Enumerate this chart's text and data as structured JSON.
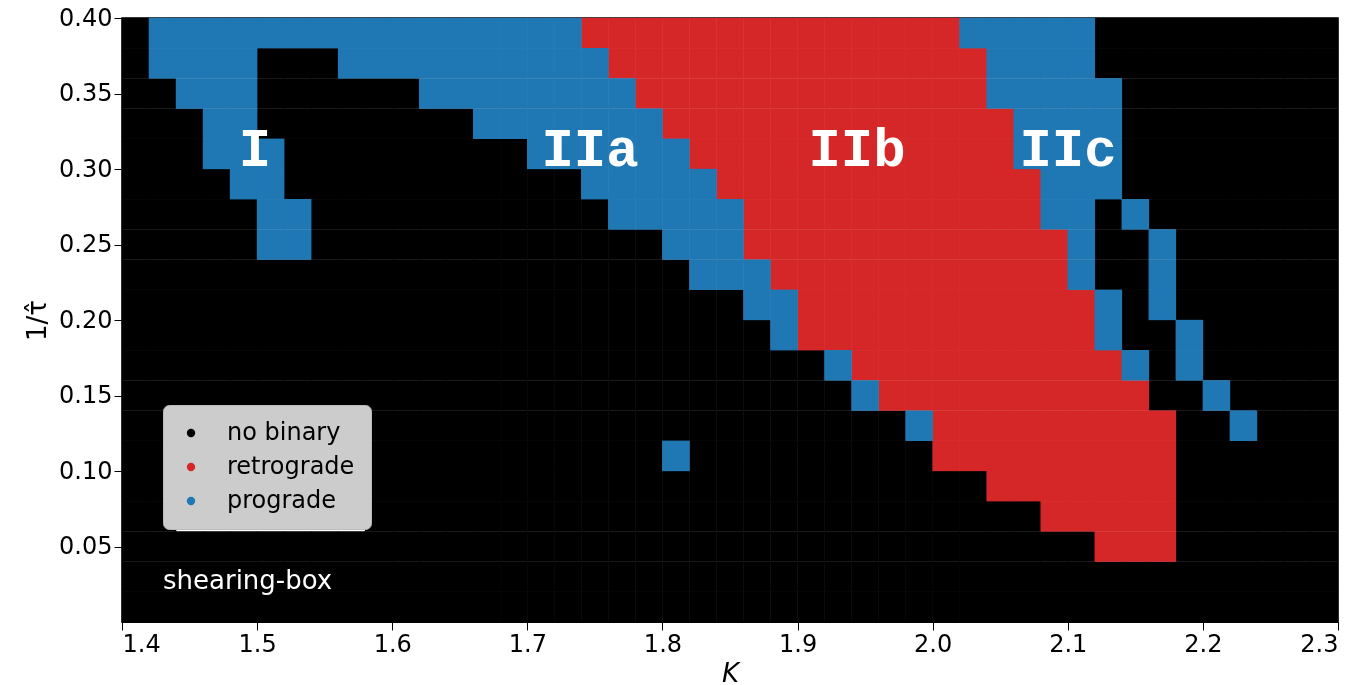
{
  "chart_data": {
    "type": "scatter",
    "marker": "square",
    "legend": "bottom left",
    "grid": false,
    "xlabel": "K",
    "ylabel": "1/τ̂",
    "xlim": [
      1.4,
      2.3
    ],
    "ylim": [
      0.0,
      0.4
    ],
    "xticks": [
      1.4,
      1.5,
      1.6,
      1.7,
      1.8,
      1.9,
      {
        "value": 2.0,
        "label": "2.0"
      },
      2.1,
      2.2,
      2.3
    ],
    "yticks": [
      0.05,
      {
        "value": 0.1,
        "label": "0.10"
      },
      0.15,
      {
        "value": 0.2,
        "label": "0.20"
      },
      0.25,
      {
        "value": 0.3,
        "label": "0.30"
      },
      0.35,
      {
        "value": 0.4,
        "label": "0.40"
      }
    ],
    "annotations": [
      "I",
      "IIa",
      "IIb",
      "IIc",
      "shearing-box"
    ],
    "series": [
      {
        "name": "no binary",
        "color": "#000000",
        "x": [
          1.41,
          2.13,
          2.15,
          2.17,
          2.19,
          2.21,
          2.23,
          2.25,
          2.27,
          2.29,
          1.41,
          1.51,
          1.53,
          1.55,
          2.13,
          2.15,
          2.17,
          2.19,
          2.21,
          2.23,
          2.25,
          2.27,
          2.29,
          1.41,
          1.43,
          1.51,
          1.53,
          1.55,
          1.57,
          1.59,
          1.61,
          2.15,
          2.17,
          2.19,
          2.21,
          2.23,
          2.25,
          2.27,
          2.29,
          1.41,
          1.43,
          1.45,
          1.51,
          1.53,
          1.55,
          1.57,
          1.59,
          1.61,
          1.63,
          1.65,
          2.15,
          2.17,
          2.19,
          2.21,
          2.23,
          2.25,
          2.27,
          2.29,
          1.41,
          1.43,
          1.45,
          1.53,
          1.55,
          1.57,
          1.59,
          1.61,
          1.63,
          1.65,
          1.67,
          1.69,
          2.15,
          2.17,
          2.19,
          2.21,
          2.23,
          2.25,
          2.27,
          2.29,
          1.41,
          1.43,
          1.45,
          1.47,
          1.53,
          1.55,
          1.57,
          1.59,
          1.61,
          1.63,
          1.65,
          1.67,
          1.69,
          1.71,
          1.73,
          2.15,
          2.17,
          2.19,
          2.21,
          2.23,
          2.25,
          2.27,
          2.29,
          1.41,
          1.43,
          1.45,
          1.47,
          1.49,
          1.55,
          1.57,
          1.59,
          1.61,
          1.63,
          1.65,
          1.67,
          1.69,
          1.71,
          1.73,
          1.75,
          2.13,
          2.17,
          2.19,
          2.21,
          2.23,
          2.25,
          2.27,
          2.29,
          1.41,
          1.43,
          1.45,
          1.47,
          1.49,
          1.55,
          1.57,
          1.59,
          1.61,
          1.63,
          1.65,
          1.67,
          1.69,
          1.71,
          1.73,
          1.75,
          1.77,
          1.79,
          2.13,
          2.15,
          2.19,
          2.21,
          2.23,
          2.25,
          2.27,
          2.29,
          1.41,
          1.43,
          1.45,
          1.47,
          1.49,
          1.51,
          1.53,
          1.55,
          1.57,
          1.59,
          1.61,
          1.63,
          1.65,
          1.67,
          1.69,
          1.71,
          1.73,
          1.75,
          1.77,
          1.79,
          1.81,
          2.13,
          2.15,
          2.19,
          2.21,
          2.23,
          2.25,
          2.27,
          2.29,
          1.41,
          1.43,
          1.45,
          1.47,
          1.49,
          1.51,
          1.53,
          1.55,
          1.57,
          1.59,
          1.61,
          1.63,
          1.65,
          1.67,
          1.69,
          1.71,
          1.73,
          1.75,
          1.77,
          1.79,
          1.81,
          1.83,
          1.85,
          2.15,
          2.19,
          2.21,
          2.23,
          2.25,
          2.27,
          2.29,
          1.41,
          1.43,
          1.45,
          1.47,
          1.49,
          1.51,
          1.53,
          1.55,
          1.57,
          1.59,
          1.61,
          1.63,
          1.65,
          1.67,
          1.69,
          1.71,
          1.73,
          1.75,
          1.77,
          1.79,
          1.81,
          1.83,
          1.85,
          1.87,
          2.15,
          2.17,
          2.21,
          2.23,
          2.25,
          2.27,
          2.29,
          1.41,
          1.43,
          1.45,
          1.47,
          1.49,
          1.51,
          1.53,
          1.55,
          1.57,
          1.59,
          1.61,
          1.63,
          1.65,
          1.67,
          1.69,
          1.71,
          1.73,
          1.75,
          1.77,
          1.79,
          1.81,
          1.83,
          1.85,
          1.87,
          1.89,
          1.91,
          2.17,
          2.21,
          2.23,
          2.25,
          2.27,
          2.29,
          1.41,
          1.43,
          1.45,
          1.47,
          1.49,
          1.51,
          1.53,
          1.55,
          1.57,
          1.59,
          1.61,
          1.63,
          1.65,
          1.67,
          1.69,
          1.71,
          1.73,
          1.75,
          1.77,
          1.79,
          1.81,
          1.83,
          1.85,
          1.87,
          1.89,
          1.91,
          1.93,
          2.17,
          2.19,
          2.23,
          2.25,
          2.27,
          2.29,
          1.41,
          1.43,
          1.59,
          1.61,
          1.63,
          1.65,
          1.67,
          1.69,
          1.71,
          1.73,
          1.75,
          1.77,
          1.79,
          1.81,
          1.83,
          1.85,
          1.87,
          1.89,
          1.91,
          1.93,
          1.95,
          1.97,
          2.19,
          2.21,
          2.25,
          2.27,
          2.29,
          1.41,
          1.43,
          1.59,
          1.61,
          1.63,
          1.65,
          1.67,
          1.69,
          1.71,
          1.73,
          1.75,
          1.77,
          1.79,
          1.83,
          1.85,
          1.87,
          1.89,
          1.91,
          1.93,
          1.95,
          1.97,
          1.99,
          2.19,
          2.21,
          2.23,
          2.25,
          2.27,
          2.29,
          1.41,
          1.43,
          1.59,
          1.61,
          1.63,
          1.65,
          1.67,
          1.69,
          1.71,
          1.73,
          1.75,
          1.77,
          1.79,
          1.81,
          1.83,
          1.85,
          1.87,
          1.89,
          1.91,
          1.93,
          1.95,
          1.97,
          1.99,
          2.01,
          2.03,
          2.19,
          2.21,
          2.23,
          2.25,
          2.27,
          2.29,
          1.41,
          1.43,
          1.59,
          1.61,
          1.63,
          1.65,
          1.67,
          1.69,
          1.71,
          1.73,
          1.75,
          1.77,
          1.79,
          1.81,
          1.83,
          1.85,
          1.87,
          1.89,
          1.91,
          1.93,
          1.95,
          1.97,
          1.99,
          2.01,
          2.03,
          2.05,
          2.07,
          2.19,
          2.21,
          2.23,
          2.25,
          2.27,
          2.29,
          1.41,
          1.43,
          1.45,
          1.47,
          1.49,
          1.51,
          1.53,
          1.55,
          1.57,
          1.59,
          1.61,
          1.63,
          1.65,
          1.67,
          1.69,
          1.71,
          1.73,
          1.75,
          1.77,
          1.79,
          1.81,
          1.83,
          1.85,
          1.87,
          1.89,
          1.91,
          1.93,
          1.95,
          1.97,
          1.99,
          2.01,
          2.03,
          2.05,
          2.07,
          2.09,
          2.11,
          2.19,
          2.21,
          2.23,
          2.25,
          2.27,
          2.29,
          1.41,
          1.43,
          1.45,
          1.47,
          1.49,
          1.51,
          1.53,
          1.55,
          1.57,
          1.59,
          1.61,
          1.63,
          1.65,
          1.67,
          1.69,
          1.71,
          1.73,
          1.75,
          1.77,
          1.79,
          1.81,
          1.83,
          1.85,
          1.87,
          1.89,
          1.91,
          1.93,
          1.95,
          1.97,
          1.99,
          2.01,
          2.03,
          2.05,
          2.07,
          2.09,
          2.11,
          2.13,
          2.15,
          2.17,
          2.19,
          2.21,
          2.23,
          2.25,
          2.27,
          2.29,
          1.41,
          1.43,
          1.45,
          1.47,
          1.49,
          1.51,
          1.53,
          1.55,
          1.57,
          1.59,
          1.61,
          1.63,
          1.65,
          1.67,
          1.69,
          1.71,
          1.73,
          1.75,
          1.77,
          1.79,
          1.81,
          1.83,
          1.85,
          1.87,
          1.89,
          1.91,
          1.93,
          1.95,
          1.97,
          1.99,
          2.01,
          2.03,
          2.05,
          2.07,
          2.09,
          2.11,
          2.13,
          2.15,
          2.17,
          2.19,
          2.21,
          2.23,
          2.25,
          2.27,
          2.29
        ],
        "values": [
          0.39,
          0.39,
          0.39,
          0.39,
          0.39,
          0.39,
          0.39,
          0.39,
          0.39,
          0.39,
          0.37,
          0.37,
          0.37,
          0.37,
          0.37,
          0.37,
          0.37,
          0.37,
          0.37,
          0.37,
          0.37,
          0.37,
          0.37,
          0.35,
          0.35,
          0.35,
          0.35,
          0.35,
          0.35,
          0.35,
          0.35,
          0.35,
          0.35,
          0.35,
          0.35,
          0.35,
          0.35,
          0.35,
          0.35,
          0.33,
          0.33,
          0.33,
          0.33,
          0.33,
          0.33,
          0.33,
          0.33,
          0.33,
          0.33,
          0.33,
          0.33,
          0.33,
          0.33,
          0.33,
          0.33,
          0.33,
          0.33,
          0.33,
          0.31,
          0.31,
          0.31,
          0.31,
          0.31,
          0.31,
          0.31,
          0.31,
          0.31,
          0.31,
          0.31,
          0.31,
          0.31,
          0.31,
          0.31,
          0.31,
          0.31,
          0.31,
          0.31,
          0.31,
          0.29,
          0.29,
          0.29,
          0.29,
          0.29,
          0.29,
          0.29,
          0.29,
          0.29,
          0.29,
          0.29,
          0.29,
          0.29,
          0.29,
          0.29,
          0.29,
          0.29,
          0.29,
          0.29,
          0.29,
          0.29,
          0.29,
          0.29,
          0.27,
          0.27,
          0.27,
          0.27,
          0.27,
          0.27,
          0.27,
          0.27,
          0.27,
          0.27,
          0.27,
          0.27,
          0.27,
          0.27,
          0.27,
          0.27,
          0.27,
          0.27,
          0.27,
          0.27,
          0.27,
          0.27,
          0.27,
          0.27,
          0.25,
          0.25,
          0.25,
          0.25,
          0.25,
          0.25,
          0.25,
          0.25,
          0.25,
          0.25,
          0.25,
          0.25,
          0.25,
          0.25,
          0.25,
          0.25,
          0.25,
          0.25,
          0.25,
          0.25,
          0.25,
          0.25,
          0.25,
          0.25,
          0.25,
          0.25,
          0.23,
          0.23,
          0.23,
          0.23,
          0.23,
          0.23,
          0.23,
          0.23,
          0.23,
          0.23,
          0.23,
          0.23,
          0.23,
          0.23,
          0.23,
          0.23,
          0.23,
          0.23,
          0.23,
          0.23,
          0.23,
          0.23,
          0.23,
          0.23,
          0.23,
          0.23,
          0.23,
          0.23,
          0.23,
          0.21,
          0.21,
          0.21,
          0.21,
          0.21,
          0.21,
          0.21,
          0.21,
          0.21,
          0.21,
          0.21,
          0.21,
          0.21,
          0.21,
          0.21,
          0.21,
          0.21,
          0.21,
          0.21,
          0.21,
          0.21,
          0.21,
          0.21,
          0.21,
          0.21,
          0.21,
          0.21,
          0.21,
          0.21,
          0.21,
          0.19,
          0.19,
          0.19,
          0.19,
          0.19,
          0.19,
          0.19,
          0.19,
          0.19,
          0.19,
          0.19,
          0.19,
          0.19,
          0.19,
          0.19,
          0.19,
          0.19,
          0.19,
          0.19,
          0.19,
          0.19,
          0.19,
          0.19,
          0.19,
          0.19,
          0.19,
          0.19,
          0.19,
          0.19,
          0.19,
          0.19,
          0.17,
          0.17,
          0.17,
          0.17,
          0.17,
          0.17,
          0.17,
          0.17,
          0.17,
          0.17,
          0.17,
          0.17,
          0.17,
          0.17,
          0.17,
          0.17,
          0.17,
          0.17,
          0.17,
          0.17,
          0.17,
          0.17,
          0.17,
          0.17,
          0.17,
          0.17,
          0.17,
          0.17,
          0.17,
          0.17,
          0.17,
          0.17,
          0.15,
          0.15,
          0.15,
          0.15,
          0.15,
          0.15,
          0.15,
          0.15,
          0.15,
          0.15,
          0.15,
          0.15,
          0.15,
          0.15,
          0.15,
          0.15,
          0.15,
          0.15,
          0.15,
          0.15,
          0.15,
          0.15,
          0.15,
          0.15,
          0.15,
          0.15,
          0.15,
          0.15,
          0.15,
          0.15,
          0.15,
          0.15,
          0.15,
          0.13,
          0.13,
          0.13,
          0.13,
          0.13,
          0.13,
          0.13,
          0.13,
          0.13,
          0.13,
          0.13,
          0.13,
          0.13,
          0.13,
          0.13,
          0.13,
          0.13,
          0.13,
          0.13,
          0.13,
          0.13,
          0.13,
          0.13,
          0.13,
          0.13,
          0.13,
          0.13,
          0.11,
          0.11,
          0.11,
          0.11,
          0.11,
          0.11,
          0.11,
          0.11,
          0.11,
          0.11,
          0.11,
          0.11,
          0.11,
          0.11,
          0.11,
          0.11,
          0.11,
          0.11,
          0.11,
          0.11,
          0.11,
          0.11,
          0.11,
          0.11,
          0.11,
          0.11,
          0.11,
          0.11,
          0.09,
          0.09,
          0.09,
          0.09,
          0.09,
          0.09,
          0.09,
          0.09,
          0.09,
          0.09,
          0.09,
          0.09,
          0.09,
          0.09,
          0.09,
          0.09,
          0.09,
          0.09,
          0.09,
          0.09,
          0.09,
          0.09,
          0.09,
          0.09,
          0.09,
          0.09,
          0.09,
          0.09,
          0.09,
          0.09,
          0.09,
          0.07,
          0.07,
          0.07,
          0.07,
          0.07,
          0.07,
          0.07,
          0.07,
          0.07,
          0.07,
          0.07,
          0.07,
          0.07,
          0.07,
          0.07,
          0.07,
          0.07,
          0.07,
          0.07,
          0.07,
          0.07,
          0.07,
          0.07,
          0.07,
          0.07,
          0.07,
          0.07,
          0.07,
          0.07,
          0.07,
          0.07,
          0.07,
          0.07,
          0.05,
          0.05,
          0.05,
          0.05,
          0.05,
          0.05,
          0.05,
          0.05,
          0.05,
          0.05,
          0.05,
          0.05,
          0.05,
          0.05,
          0.05,
          0.05,
          0.05,
          0.05,
          0.05,
          0.05,
          0.05,
          0.05,
          0.05,
          0.05,
          0.05,
          0.05,
          0.05,
          0.05,
          0.05,
          0.05,
          0.05,
          0.05,
          0.05,
          0.05,
          0.05,
          0.05,
          0.05,
          0.05,
          0.05,
          0.05,
          0.05,
          0.05,
          0.03,
          0.03,
          0.03,
          0.03,
          0.03,
          0.03,
          0.03,
          0.03,
          0.03,
          0.03,
          0.03,
          0.03,
          0.03,
          0.03,
          0.03,
          0.03,
          0.03,
          0.03,
          0.03,
          0.03,
          0.03,
          0.03,
          0.03,
          0.03,
          0.03,
          0.03,
          0.03,
          0.03,
          0.03,
          0.03,
          0.03,
          0.03,
          0.03,
          0.03,
          0.03,
          0.03,
          0.03,
          0.03,
          0.03,
          0.03,
          0.03,
          0.03,
          0.03,
          0.03,
          0.03,
          0.01,
          0.01,
          0.01,
          0.01,
          0.01,
          0.01,
          0.01,
          0.01,
          0.01,
          0.01,
          0.01,
          0.01,
          0.01,
          0.01,
          0.01,
          0.01,
          0.01,
          0.01,
          0.01,
          0.01,
          0.01,
          0.01,
          0.01,
          0.01,
          0.01,
          0.01,
          0.01,
          0.01,
          0.01,
          0.01,
          0.01,
          0.01,
          0.01,
          0.01,
          0.01,
          0.01,
          0.01,
          0.01,
          0.01,
          0.01,
          0.01,
          0.01,
          0.01,
          0.01,
          0.01
        ]
      },
      {
        "name": "retrograde",
        "color": "#d62728",
        "x": [
          1.75,
          1.77,
          1.79,
          1.81,
          1.83,
          1.85,
          1.87,
          1.89,
          1.91,
          1.93,
          1.95,
          1.97,
          1.99,
          2.01,
          1.77,
          1.79,
          1.81,
          1.83,
          1.85,
          1.87,
          1.89,
          1.91,
          1.93,
          1.95,
          1.97,
          1.99,
          2.01,
          2.03,
          1.79,
          1.81,
          1.83,
          1.85,
          1.87,
          1.89,
          1.91,
          1.93,
          1.95,
          1.97,
          1.99,
          2.01,
          2.03,
          1.81,
          1.83,
          1.85,
          1.87,
          1.89,
          1.91,
          1.93,
          1.95,
          1.97,
          1.99,
          2.01,
          2.03,
          2.05,
          1.83,
          1.85,
          1.87,
          1.89,
          1.91,
          1.93,
          1.95,
          1.97,
          1.99,
          2.01,
          2.03,
          2.05,
          1.85,
          1.87,
          1.89,
          1.91,
          1.93,
          1.95,
          1.97,
          1.99,
          2.01,
          2.03,
          2.05,
          2.07,
          1.87,
          1.89,
          1.91,
          1.93,
          1.95,
          1.97,
          1.99,
          2.01,
          2.03,
          2.05,
          2.07,
          1.87,
          1.89,
          1.91,
          1.93,
          1.95,
          1.97,
          1.99,
          2.01,
          2.03,
          2.05,
          2.07,
          2.09,
          1.89,
          1.91,
          1.93,
          1.95,
          1.97,
          1.99,
          2.01,
          2.03,
          2.05,
          2.07,
          2.09,
          1.91,
          1.93,
          1.95,
          1.97,
          1.99,
          2.01,
          2.03,
          2.05,
          2.07,
          2.09,
          2.11,
          1.91,
          1.93,
          1.95,
          1.97,
          1.99,
          2.01,
          2.03,
          2.05,
          2.07,
          2.09,
          2.11,
          1.95,
          1.97,
          1.99,
          2.01,
          2.03,
          2.05,
          2.07,
          2.09,
          2.11,
          2.13,
          1.97,
          1.99,
          2.01,
          2.03,
          2.05,
          2.07,
          2.09,
          2.11,
          2.13,
          2.15,
          2.01,
          2.03,
          2.05,
          2.07,
          2.09,
          2.11,
          2.13,
          2.15,
          2.17,
          2.01,
          2.03,
          2.05,
          2.07,
          2.09,
          2.11,
          2.13,
          2.15,
          2.17,
          2.05,
          2.07,
          2.09,
          2.11,
          2.13,
          2.15,
          2.17,
          2.09,
          2.11,
          2.13,
          2.15,
          2.17,
          2.13,
          2.15,
          2.17
        ],
        "values": [
          0.39,
          0.39,
          0.39,
          0.39,
          0.39,
          0.39,
          0.39,
          0.39,
          0.39,
          0.39,
          0.39,
          0.39,
          0.39,
          0.39,
          0.37,
          0.37,
          0.37,
          0.37,
          0.37,
          0.37,
          0.37,
          0.37,
          0.37,
          0.37,
          0.37,
          0.37,
          0.37,
          0.37,
          0.35,
          0.35,
          0.35,
          0.35,
          0.35,
          0.35,
          0.35,
          0.35,
          0.35,
          0.35,
          0.35,
          0.35,
          0.35,
          0.33,
          0.33,
          0.33,
          0.33,
          0.33,
          0.33,
          0.33,
          0.33,
          0.33,
          0.33,
          0.33,
          0.33,
          0.33,
          0.31,
          0.31,
          0.31,
          0.31,
          0.31,
          0.31,
          0.31,
          0.31,
          0.31,
          0.31,
          0.31,
          0.31,
          0.29,
          0.29,
          0.29,
          0.29,
          0.29,
          0.29,
          0.29,
          0.29,
          0.29,
          0.29,
          0.29,
          0.29,
          0.27,
          0.27,
          0.27,
          0.27,
          0.27,
          0.27,
          0.27,
          0.27,
          0.27,
          0.27,
          0.27,
          0.25,
          0.25,
          0.25,
          0.25,
          0.25,
          0.25,
          0.25,
          0.25,
          0.25,
          0.25,
          0.25,
          0.25,
          0.23,
          0.23,
          0.23,
          0.23,
          0.23,
          0.23,
          0.23,
          0.23,
          0.23,
          0.23,
          0.23,
          0.21,
          0.21,
          0.21,
          0.21,
          0.21,
          0.21,
          0.21,
          0.21,
          0.21,
          0.21,
          0.21,
          0.19,
          0.19,
          0.19,
          0.19,
          0.19,
          0.19,
          0.19,
          0.19,
          0.19,
          0.19,
          0.19,
          0.17,
          0.17,
          0.17,
          0.17,
          0.17,
          0.17,
          0.17,
          0.17,
          0.17,
          0.17,
          0.15,
          0.15,
          0.15,
          0.15,
          0.15,
          0.15,
          0.15,
          0.15,
          0.15,
          0.15,
          0.13,
          0.13,
          0.13,
          0.13,
          0.13,
          0.13,
          0.13,
          0.13,
          0.13,
          0.11,
          0.11,
          0.11,
          0.11,
          0.11,
          0.11,
          0.11,
          0.11,
          0.11,
          0.09,
          0.09,
          0.09,
          0.09,
          0.09,
          0.09,
          0.09,
          0.07,
          0.07,
          0.07,
          0.07,
          0.07,
          0.05,
          0.05,
          0.05
        ]
      },
      {
        "name": "prograde",
        "color": "#1f77b4",
        "x": [
          1.43,
          1.45,
          1.47,
          1.49,
          1.51,
          1.53,
          1.55,
          1.57,
          1.59,
          1.61,
          1.63,
          1.65,
          1.67,
          1.69,
          1.71,
          1.73,
          2.03,
          2.05,
          2.07,
          2.09,
          2.11,
          1.43,
          1.45,
          1.47,
          1.49,
          1.57,
          1.59,
          1.61,
          1.63,
          1.65,
          1.67,
          1.69,
          1.71,
          1.73,
          1.75,
          2.05,
          2.07,
          2.09,
          2.11,
          1.45,
          1.47,
          1.49,
          1.63,
          1.65,
          1.67,
          1.69,
          1.71,
          1.73,
          1.75,
          1.77,
          2.05,
          2.07,
          2.09,
          2.11,
          2.13,
          1.47,
          1.49,
          1.67,
          1.69,
          1.71,
          1.73,
          1.75,
          1.77,
          1.79,
          2.07,
          2.09,
          2.11,
          2.13,
          1.47,
          1.49,
          1.51,
          1.71,
          1.73,
          1.75,
          1.77,
          1.79,
          1.81,
          2.07,
          2.09,
          2.11,
          2.13,
          1.49,
          1.51,
          1.75,
          1.77,
          1.79,
          1.81,
          1.83,
          2.09,
          2.11,
          2.13,
          1.51,
          1.53,
          1.77,
          1.79,
          1.81,
          1.83,
          1.85,
          2.09,
          2.11,
          2.15,
          1.51,
          1.53,
          1.81,
          1.83,
          1.85,
          2.11,
          2.17,
          1.83,
          1.85,
          1.87,
          2.11,
          2.17,
          1.87,
          1.89,
          2.13,
          2.17,
          1.89,
          2.13,
          2.19,
          1.93,
          2.15,
          2.19,
          1.95,
          2.21,
          1.99,
          2.23,
          1.81
        ],
        "values": [
          0.39,
          0.39,
          0.39,
          0.39,
          0.39,
          0.39,
          0.39,
          0.39,
          0.39,
          0.39,
          0.39,
          0.39,
          0.39,
          0.39,
          0.39,
          0.39,
          0.39,
          0.39,
          0.39,
          0.39,
          0.39,
          0.37,
          0.37,
          0.37,
          0.37,
          0.37,
          0.37,
          0.37,
          0.37,
          0.37,
          0.37,
          0.37,
          0.37,
          0.37,
          0.37,
          0.37,
          0.37,
          0.37,
          0.37,
          0.35,
          0.35,
          0.35,
          0.35,
          0.35,
          0.35,
          0.35,
          0.35,
          0.35,
          0.35,
          0.35,
          0.35,
          0.35,
          0.35,
          0.35,
          0.35,
          0.33,
          0.33,
          0.33,
          0.33,
          0.33,
          0.33,
          0.33,
          0.33,
          0.33,
          0.33,
          0.33,
          0.33,
          0.33,
          0.31,
          0.31,
          0.31,
          0.31,
          0.31,
          0.31,
          0.31,
          0.31,
          0.31,
          0.31,
          0.31,
          0.31,
          0.31,
          0.29,
          0.29,
          0.29,
          0.29,
          0.29,
          0.29,
          0.29,
          0.29,
          0.29,
          0.29,
          0.27,
          0.27,
          0.27,
          0.27,
          0.27,
          0.27,
          0.27,
          0.27,
          0.27,
          0.27,
          0.25,
          0.25,
          0.25,
          0.25,
          0.25,
          0.25,
          0.25,
          0.23,
          0.23,
          0.23,
          0.23,
          0.23,
          0.21,
          0.21,
          0.21,
          0.21,
          0.19,
          0.19,
          0.19,
          0.17,
          0.17,
          0.17,
          0.15,
          0.15,
          0.13,
          0.13,
          0.11
        ]
      }
    ]
  }
}
